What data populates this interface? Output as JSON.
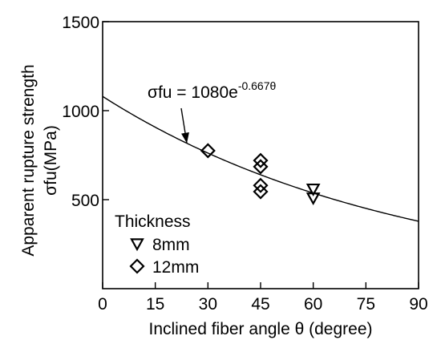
{
  "chart_data": {
    "type": "scatter",
    "xlabel": "Inclined fiber angle θ (degree)",
    "ylabel_line1": "Apparent rupture strength",
    "ylabel_line2": "σfu(MPa)",
    "xlim": [
      0,
      90
    ],
    "ylim": [
      0,
      1500
    ],
    "x_ticks": [
      0,
      15,
      30,
      45,
      60,
      75,
      90
    ],
    "y_ticks": [
      500,
      1000,
      1500
    ],
    "grid": false,
    "legend": {
      "title": "Thickness",
      "placement": "bottom-left",
      "entries": [
        {
          "label": "8mm",
          "marker": "triangle-down"
        },
        {
          "label": "12mm",
          "marker": "diamond"
        }
      ]
    },
    "series": [
      {
        "name": "8mm",
        "marker": "triangle-down",
        "points": [
          [
            60,
            560
          ],
          [
            60,
            510
          ]
        ]
      },
      {
        "name": "12mm",
        "marker": "diamond",
        "points": [
          [
            30,
            775
          ],
          [
            45,
            720
          ],
          [
            45,
            685
          ],
          [
            45,
            580
          ],
          [
            45,
            545
          ]
        ]
      }
    ],
    "fit": {
      "a": 1080,
      "b": -0.667,
      "label_prefix": "σfu = 1080e",
      "label_exponent": "-0.667θ"
    }
  }
}
